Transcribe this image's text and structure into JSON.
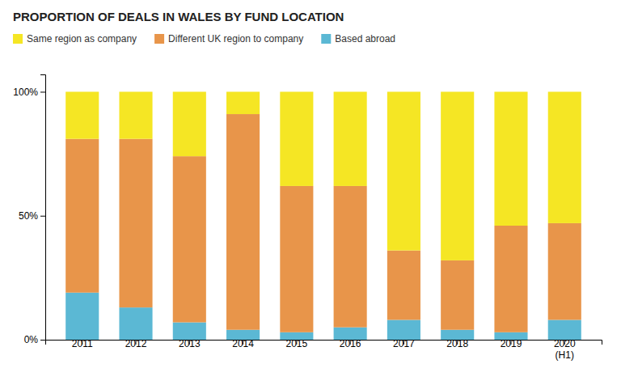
{
  "chart_data": {
    "type": "bar",
    "title": "PROPORTION OF DEALS IN WALES BY FUND LOCATION",
    "categories": [
      "2011",
      "2012",
      "2013",
      "2014",
      "2015",
      "2016",
      "2017",
      "2018",
      "2019",
      "2020\n(H1)"
    ],
    "series": [
      {
        "name": "Based abroad",
        "color": "#5bb8d4",
        "values": [
          19,
          13,
          7,
          4,
          3,
          5,
          8,
          4,
          3,
          8
        ]
      },
      {
        "name": "Different UK region to company",
        "color": "#e8954a",
        "values": [
          62,
          68,
          67,
          87,
          59,
          57,
          28,
          28,
          43,
          39
        ]
      },
      {
        "name": "Same region as company",
        "color": "#f5e624",
        "values": [
          19,
          19,
          26,
          9,
          38,
          38,
          64,
          68,
          54,
          53
        ]
      }
    ],
    "stacked": true,
    "ylim": [
      0,
      107
    ],
    "yticks": [
      {
        "value": 0,
        "label": "0%"
      },
      {
        "value": 50,
        "label": "50%"
      },
      {
        "value": 100,
        "label": "100%"
      }
    ],
    "grid": false,
    "legend": "top-left"
  }
}
